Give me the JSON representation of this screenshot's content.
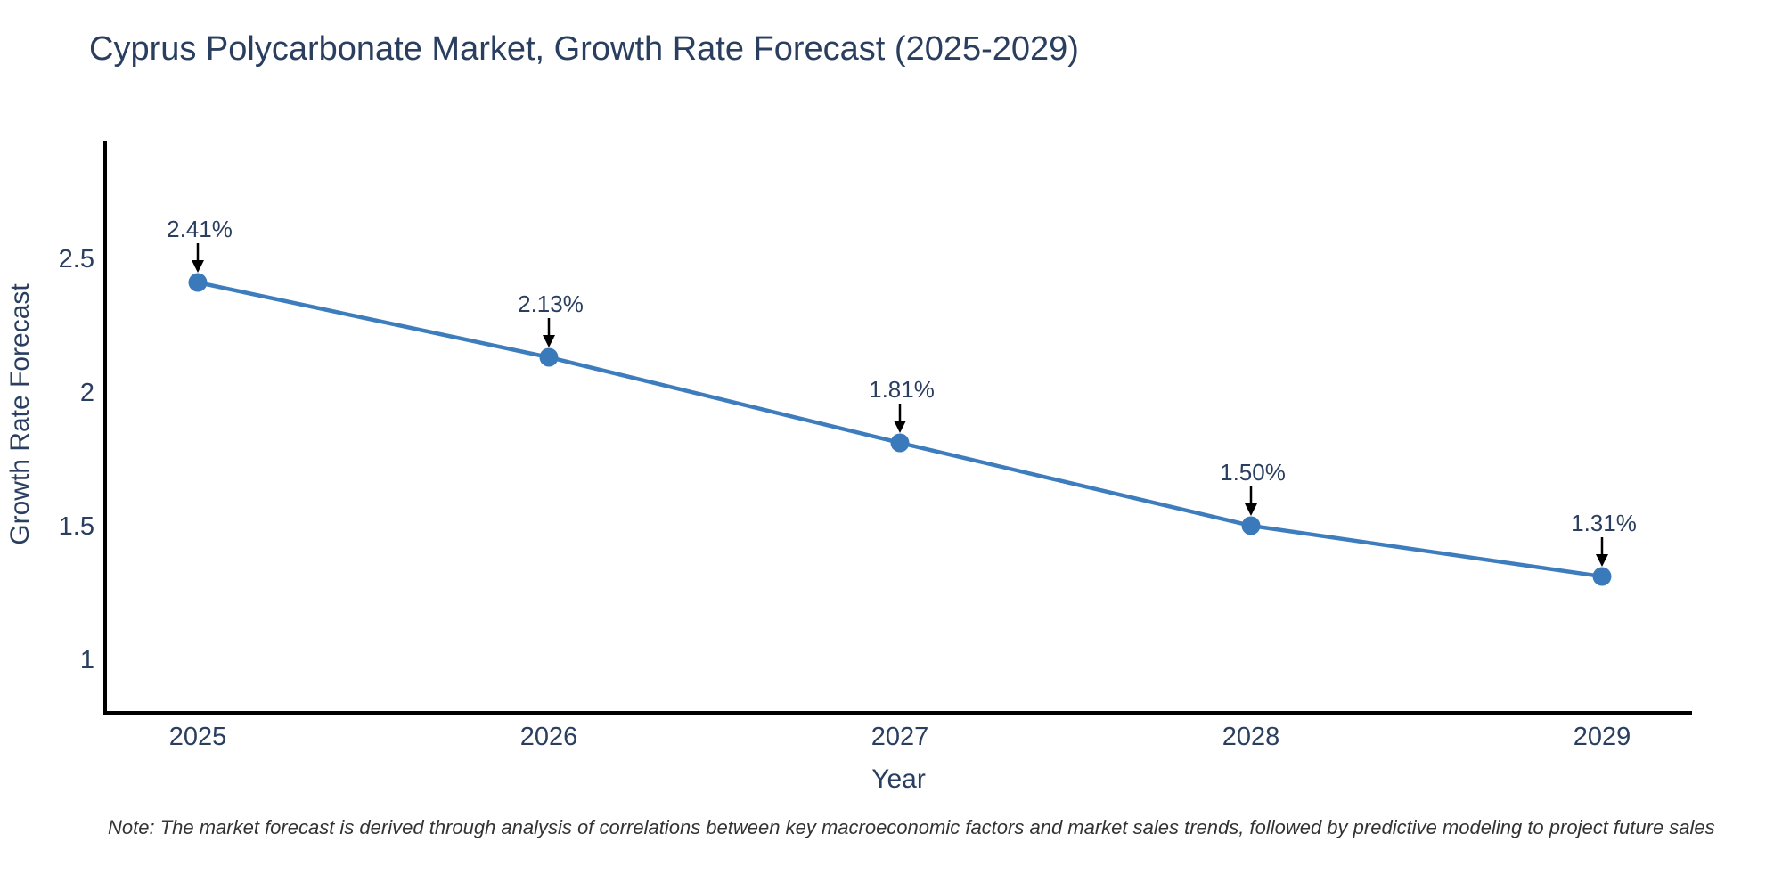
{
  "chart": {
    "note": "Note: The market forecast is derived through analysis of correlations between key macroeconomic factors and market sales trends, followed by predictive modeling to project future sales"
  },
  "chart_data": {
    "type": "line",
    "title": "Cyprus Polycarbonate Market, Growth Rate Forecast (2025-2029)",
    "x": [
      "2025",
      "2026",
      "2027",
      "2028",
      "2029"
    ],
    "series": [
      {
        "name": "Growth Rate Forecast",
        "values": [
          2.41,
          2.13,
          1.81,
          1.5,
          1.31
        ]
      }
    ],
    "point_labels": [
      "2.41%",
      "2.13%",
      "1.81%",
      "1.50%",
      "1.31%"
    ],
    "xlabel": "Year",
    "ylabel": "Growth Rate Forecast",
    "yticks": [
      2.5,
      2.0,
      1.5,
      1.0
    ],
    "ytick_labels": [
      "2.5",
      "2",
      "1.5",
      "1"
    ],
    "ylim": [
      0.8,
      2.9333
    ],
    "grid": false,
    "legend": "none",
    "colors": {
      "line": "#3e7dbd",
      "marker": "#3a79ba",
      "arrow": "#000000",
      "text": "#2a3f5f",
      "axis": "#000000"
    }
  }
}
